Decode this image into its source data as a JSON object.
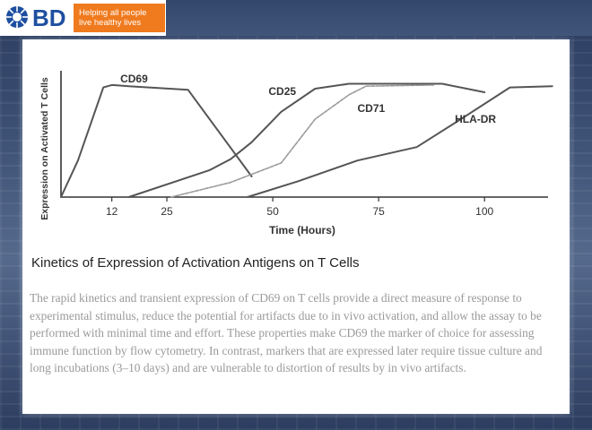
{
  "header": {
    "logo_text": "BD",
    "tagline_line1": "Helping all people",
    "tagline_line2": "live healthy lives"
  },
  "colors": {
    "brand_blue": "#1e4fa0",
    "tagline_orange": "#f07a1e",
    "series_dark": "#555555",
    "series_light": "#9a9a9a"
  },
  "chart_title": "Kinetics of Expression of Activation Antigens on T Cells",
  "caption": "The rapid kinetics and transient expression of CD69 on T cells provide a direct measure of response to experimental stimulus, reduce the potential for artifacts due to in vivo activation, and allow the assay to be performed with minimal time and effort. These properties make CD69 the marker of choice for assessing immune function by flow cytometry. In contrast, markers that are expressed later require tissue culture and long incubations (3–10 days) and are vulnerable to distortion of results by in vivo artifacts.",
  "chart_data": {
    "type": "line",
    "xlabel": "Time (Hours)",
    "ylabel": "Expression on Activated T Cells",
    "xticks": [
      12,
      25,
      50,
      75,
      100
    ],
    "xlim": [
      0,
      115
    ],
    "ylim": [
      0,
      100
    ],
    "grid": false,
    "series": [
      {
        "name": "CD69",
        "style": "dark",
        "label_at": [
          14,
          94
        ],
        "x": [
          0,
          4,
          10,
          12,
          16,
          30,
          45
        ],
        "y": [
          0,
          30,
          90,
          92,
          91,
          88,
          17
        ]
      },
      {
        "name": "CD25",
        "style": "dark",
        "label_at": [
          49,
          84
        ],
        "x": [
          16,
          35,
          40,
          45,
          52,
          60,
          68,
          74,
          90,
          100
        ],
        "y": [
          0,
          22,
          31,
          45,
          70,
          89,
          93,
          93,
          93,
          86
        ]
      },
      {
        "name": "CD71",
        "style": "light",
        "label_at": [
          70,
          70
        ],
        "x": [
          26,
          40,
          52,
          60,
          68,
          72,
          88
        ],
        "y": [
          0,
          12,
          28,
          64,
          84,
          91,
          92
        ]
      },
      {
        "name": "HLA-DR",
        "style": "dark",
        "label_at": [
          93,
          61
        ],
        "x": [
          44,
          56,
          70,
          84,
          94,
          106,
          116
        ],
        "y": [
          0,
          13,
          30,
          41,
          63,
          90,
          91
        ]
      }
    ]
  }
}
